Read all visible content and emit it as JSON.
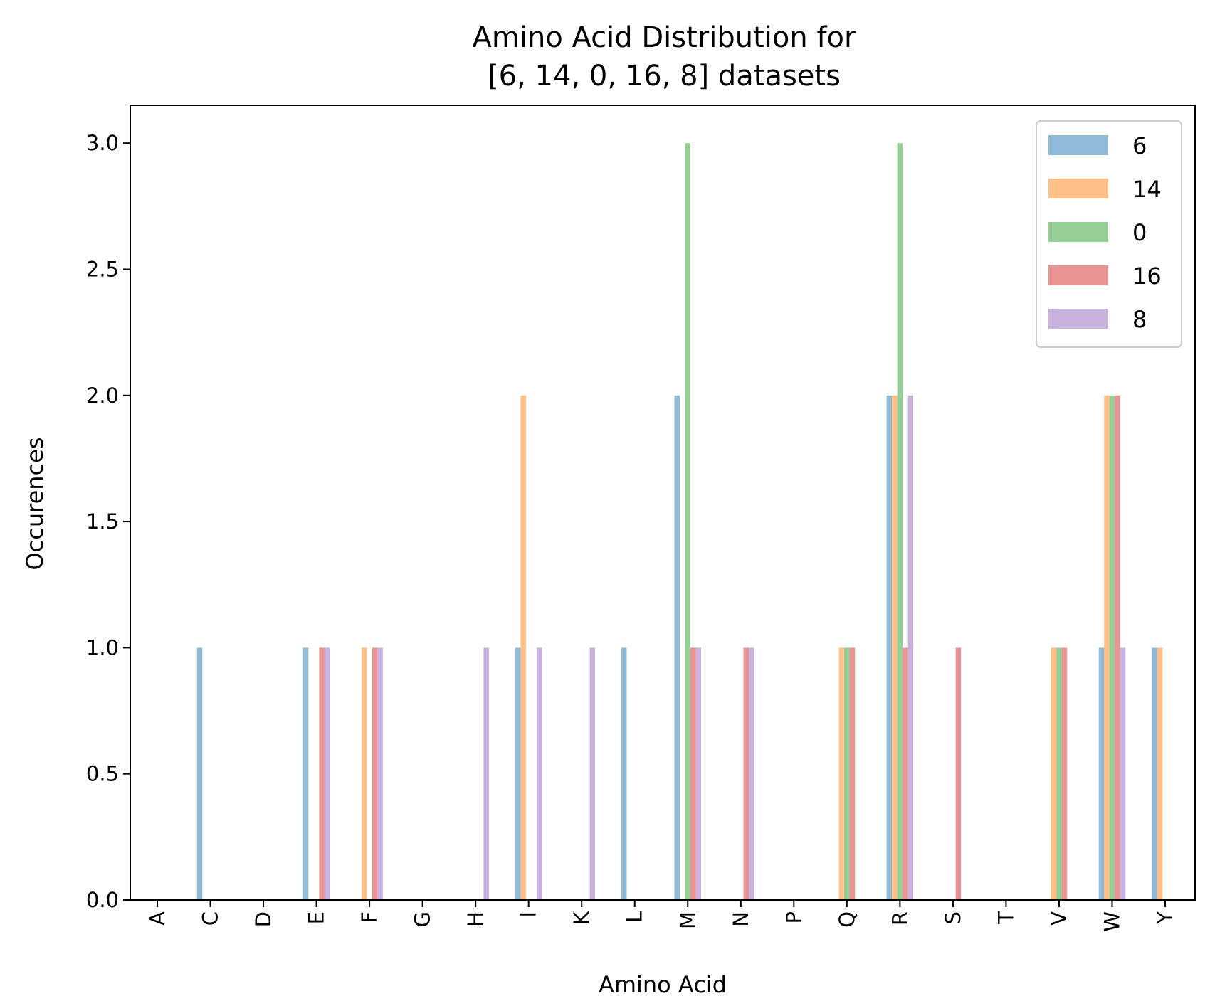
{
  "chart_data": {
    "type": "bar",
    "title_lines": [
      "Amino Acid Distribution for",
      "[6, 14, 0, 16, 8] datasets"
    ],
    "xlabel": "Amino Acid",
    "ylabel": "Occurences",
    "ylim": [
      0,
      3.15
    ],
    "yticks": [
      "0.0",
      "0.5",
      "1.0",
      "1.5",
      "2.0",
      "2.5",
      "3.0"
    ],
    "grid": false,
    "legend_position": "top-right",
    "categories": [
      "A",
      "C",
      "D",
      "E",
      "F",
      "G",
      "H",
      "I",
      "K",
      "L",
      "M",
      "N",
      "P",
      "Q",
      "R",
      "S",
      "T",
      "V",
      "W",
      "Y"
    ],
    "series": [
      {
        "name": "6",
        "color": "#1f77b4",
        "values": [
          0,
          1,
          0,
          1,
          0,
          0,
          0,
          1,
          0,
          1,
          2,
          0,
          0,
          0,
          2,
          0,
          0,
          0,
          1,
          1
        ]
      },
      {
        "name": "14",
        "color": "#ff7f0e",
        "values": [
          0,
          0,
          0,
          0,
          1,
          0,
          0,
          2,
          0,
          0,
          0,
          0,
          0,
          1,
          2,
          0,
          0,
          1,
          2,
          1
        ]
      },
      {
        "name": "0",
        "color": "#2ca02c",
        "values": [
          0,
          0,
          0,
          0,
          0,
          0,
          0,
          0,
          0,
          0,
          3,
          0,
          0,
          1,
          3,
          0,
          0,
          1,
          2,
          0
        ]
      },
      {
        "name": "16",
        "color": "#d62728",
        "values": [
          0,
          0,
          0,
          1,
          1,
          0,
          0,
          0,
          0,
          0,
          1,
          1,
          0,
          1,
          1,
          1,
          0,
          1,
          2,
          0
        ]
      },
      {
        "name": "8",
        "color": "#9467bd",
        "values": [
          0,
          0,
          0,
          1,
          1,
          0,
          1,
          1,
          1,
          0,
          1,
          1,
          0,
          0,
          2,
          0,
          0,
          0,
          1,
          0
        ]
      }
    ]
  }
}
